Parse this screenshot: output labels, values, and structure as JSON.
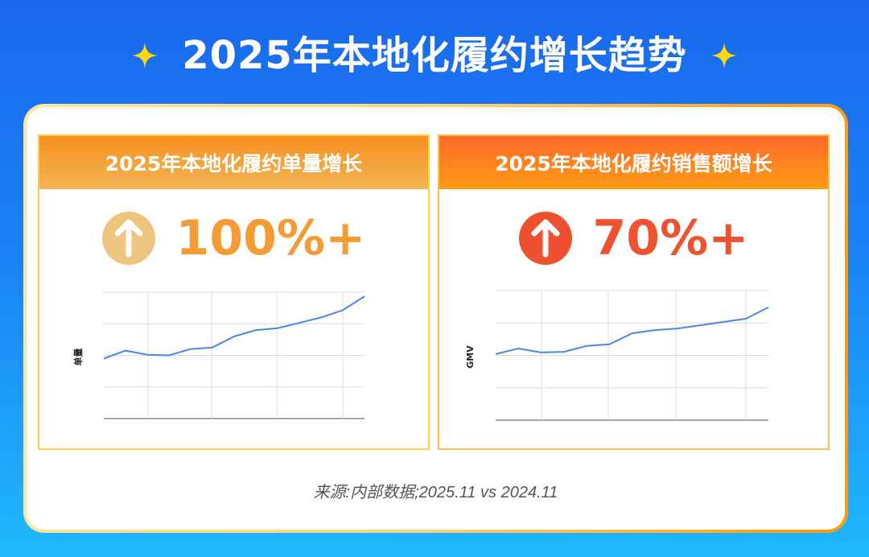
{
  "header": {
    "title": "2025年本地化履约增长趋势",
    "left_icon": "sparkle-icon",
    "right_icon": "sparkle-icon",
    "sparkle_color": "#ffd900"
  },
  "panels": [
    {
      "title": "2025年本地化履约单量增长",
      "stat_icon": "arrow-up-circle-icon",
      "stat_value": "100%+",
      "stat_color": "#f39c35",
      "icon_bg": "#efc47e",
      "y_label": "单量"
    },
    {
      "title": "2025年本地化履约销售额增长",
      "stat_icon": "arrow-up-circle-icon",
      "stat_value": "70%+",
      "stat_color": "#f0512f",
      "icon_bg": "#ee5130",
      "y_label": "GMV"
    }
  ],
  "footer": {
    "source": "来源:内部数据;2025.11 vs 2024.11"
  },
  "colors": {
    "line": "#4a86e8",
    "grid": "#dcdcdc",
    "axis": "#888888"
  },
  "chart_data": [
    {
      "type": "line",
      "title": "2025年本地化履约单量增长",
      "xlabel": "",
      "ylabel": "单量",
      "x": [
        1,
        2,
        3,
        4,
        5,
        6,
        7,
        8,
        9,
        10,
        11,
        12,
        13
      ],
      "series": [
        {
          "name": "单量",
          "values": [
            1.9,
            2.15,
            2.02,
            2.0,
            2.2,
            2.25,
            2.6,
            2.8,
            2.86,
            3.03,
            3.2,
            3.43,
            3.87
          ]
        }
      ],
      "ylim": [
        0,
        4
      ],
      "grid": true,
      "tick_labels_visible": false,
      "legend": "none"
    },
    {
      "type": "line",
      "title": "2025年本地化履约销售额增长",
      "xlabel": "",
      "ylabel": "GMV",
      "x": [
        1,
        2,
        3,
        4,
        5,
        6,
        7,
        8,
        9,
        10,
        11,
        12,
        13
      ],
      "series": [
        {
          "name": "GMV",
          "values": [
            2.04,
            2.21,
            2.09,
            2.11,
            2.29,
            2.34,
            2.68,
            2.78,
            2.83,
            2.93,
            3.03,
            3.13,
            3.48
          ]
        }
      ],
      "ylim": [
        0,
        4
      ],
      "grid": true,
      "tick_labels_visible": false,
      "legend": "none"
    }
  ]
}
